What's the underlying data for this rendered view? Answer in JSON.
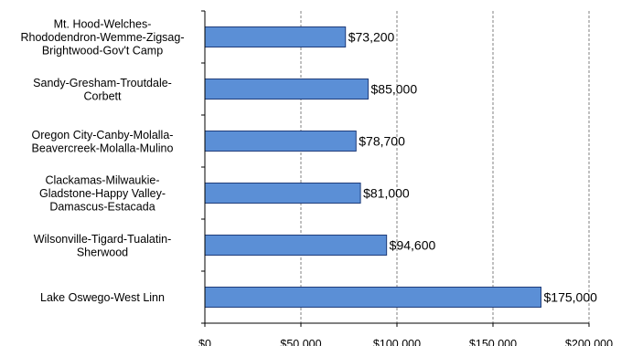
{
  "chart_data": {
    "type": "bar",
    "orientation": "horizontal",
    "categories": [
      "Mt. Hood-Welches-Rhododendron-Wemme-Zigsag-Brightwood-Gov't Camp",
      "Sandy-Gresham-Troutdale-Corbett",
      "Oregon City-Canby-Molalla-Beavercreek-Molalla-Mulino",
      "Clackamas-Milwaukie-Gladstone-Happy Valley-Damascus-Estacada",
      "Wilsonville-Tigard-Tualatin-Sherwood",
      "Lake Oswego-West Linn"
    ],
    "category_label_lines": [
      [
        "Mt. Hood-Welches-",
        "Rhododendron-Wemme-Zigsag-",
        "Brightwood-Gov't Camp"
      ],
      [
        "Sandy-Gresham-Troutdale-",
        "Corbett"
      ],
      [
        "Oregon City-Canby-Molalla-",
        "Beavercreek-Molalla-Mulino"
      ],
      [
        "Clackamas-Milwaukie-",
        "Gladstone-Happy Valley-",
        "Damascus-Estacada"
      ],
      [
        "Wilsonville-Tigard-Tualatin-",
        "Sherwood"
      ],
      [
        "Lake Oswego-West Linn"
      ]
    ],
    "values": [
      73200,
      85000,
      78700,
      81000,
      94600,
      175000
    ],
    "data_labels": [
      "$73,200",
      "$85,000",
      "$78,700",
      "$81,000",
      "$94,600",
      "$175,000"
    ],
    "x_ticks": [
      0,
      50000,
      100000,
      150000,
      200000
    ],
    "x_tick_labels": [
      "$0",
      "$50,000",
      "$100,000",
      "$150,000",
      "$200,000"
    ],
    "xlim": [
      0,
      200000
    ],
    "grid": "vertical dashed",
    "title": "",
    "xlabel": "",
    "ylabel": "",
    "colors": {
      "bar_fill": "#5b8fd6",
      "bar_stroke": "#1f3c7a",
      "grid": "#808080",
      "axis": "#000000"
    }
  }
}
